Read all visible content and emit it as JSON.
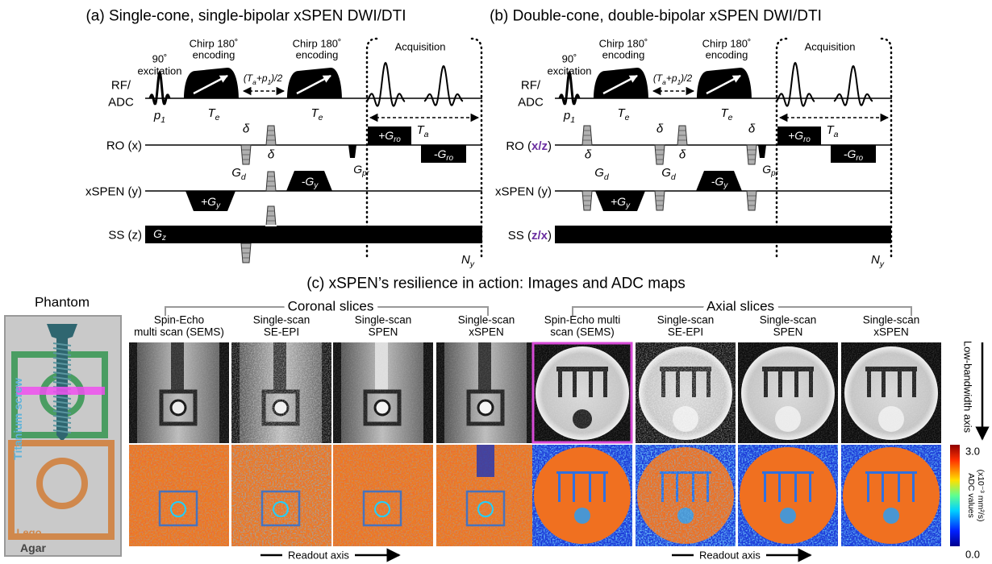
{
  "panel_a": {
    "title": "(a) Single-cone, single-bipolar xSPEN DWI/DTI",
    "excitation": [
      "90˚",
      "excitation"
    ],
    "chirp_1": [
      "Chirp 180˚",
      "encoding"
    ],
    "chirp_2": [
      "Chirp 180˚",
      "encoding"
    ],
    "delay": [
      "(T",
      "a",
      "+p",
      "1",
      ")/2"
    ],
    "acquisition": "Acquisition",
    "rf_label": [
      "RF/",
      "ADC"
    ],
    "ro_label": "RO (x)",
    "xspen_label": "xSPEN (y)",
    "ss_label": "SS (z)",
    "p1": [
      "p",
      "1"
    ],
    "te_1": [
      "T",
      "e"
    ],
    "te_2": [
      "T",
      "e"
    ],
    "ta": [
      "T",
      "a"
    ],
    "plus_gro": [
      "+G",
      "ro"
    ],
    "minus_gro": [
      "-G",
      "ro"
    ],
    "gpr": [
      "G",
      "pr"
    ],
    "deltas": [
      "δ",
      "δ"
    ],
    "gd": [
      [
        "G",
        "d"
      ]
    ],
    "minus_gy": [
      "-G",
      "y"
    ],
    "plus_gy": [
      "+G",
      "y"
    ],
    "gz": [
      "G",
      "z"
    ],
    "ny": [
      "N",
      "y"
    ]
  },
  "panel_b": {
    "title": "(b) Double-cone, double-bipolar xSPEN DWI/DTI",
    "excitation": [
      "90˚",
      "excitation"
    ],
    "chirp_1": [
      "Chirp 180˚",
      "encoding"
    ],
    "chirp_2": [
      "Chirp 180˚",
      "encoding"
    ],
    "delay": [
      "(T",
      "a",
      "+p",
      "1",
      ")/2"
    ],
    "acquisition": "Acquisition",
    "rf_label": [
      "RF/",
      "ADC"
    ],
    "ro_label": [
      "RO (",
      "x/z",
      ")"
    ],
    "xspen_label": "xSPEN (y)",
    "ss_label": [
      "SS (",
      "z/x",
      ")"
    ],
    "p1": [
      "p",
      "1"
    ],
    "te_1": [
      "T",
      "e"
    ],
    "te_2": [
      "T",
      "e"
    ],
    "ta": [
      "T",
      "a"
    ],
    "plus_gro": [
      "+G",
      "ro"
    ],
    "minus_gro": [
      "-G",
      "ro"
    ],
    "gpr": [
      "G",
      "pr"
    ],
    "deltas": [
      "δ",
      "δ",
      "δ",
      "δ"
    ],
    "gd": [
      [
        "G",
        "d"
      ],
      [
        "G",
        "d"
      ]
    ],
    "minus_gy": [
      "-G",
      "y"
    ],
    "plus_gy": [
      "+G",
      "y"
    ],
    "ny": [
      "N",
      "y"
    ]
  },
  "panel_c": {
    "title": "(c) xSPEN’s resilience in action: Images and ADC maps",
    "phantom": {
      "title": "Phantom",
      "screw": "Titanium screw",
      "lego": "Lego",
      "agar": "Agar"
    },
    "coronal": {
      "title": "Coronal slices",
      "columns": [
        [
          "Spin-Echo",
          "multi scan (SEMS)"
        ],
        [
          "Single-scan",
          "SE-EPI"
        ],
        [
          "Single-scan",
          "SPEN"
        ],
        [
          "Single-scan",
          "xSPEN"
        ]
      ]
    },
    "axial": {
      "title": "Axial slices",
      "columns": [
        [
          "Spin-Echo multi",
          "scan (SEMS)"
        ],
        [
          "Single-scan",
          "SE-EPI"
        ],
        [
          "Single-scan",
          "SPEN"
        ],
        [
          "Single-scan",
          "xSPEN"
        ]
      ]
    },
    "low_bandwidth_axis": "Low-bandwidth axis",
    "readout_axis": [
      "Readout axis",
      "Readout axis"
    ],
    "colorbar": {
      "label": [
        "ADC values",
        "(x10⁻³ mm²/s)"
      ],
      "max": "3.0",
      "min": "0.0"
    }
  }
}
